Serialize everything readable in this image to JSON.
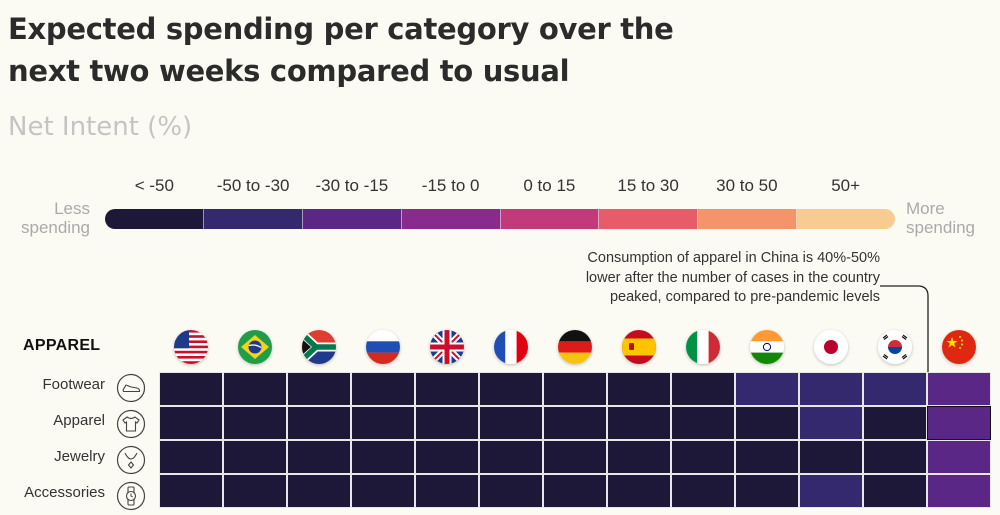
{
  "title_line1": "Expected spending per category over the",
  "title_line2": "next two weeks compared to usual",
  "subtitle": "Net Intent (%)",
  "legend": {
    "less_line1": "Less",
    "less_line2": "spending",
    "more_line1": "More",
    "more_line2": "spending",
    "bins": [
      {
        "label": "< -50",
        "color": "#1e1838"
      },
      {
        "label": "-50 to -30",
        "color": "#34296e"
      },
      {
        "label": "-30 to -15",
        "color": "#5b2787"
      },
      {
        "label": "-15 to 0",
        "color": "#8a2a8c"
      },
      {
        "label": "0 to 15",
        "color": "#c23a7a"
      },
      {
        "label": "15 to 30",
        "color": "#e85c6a"
      },
      {
        "label": "30 to 50",
        "color": "#f4946a"
      },
      {
        "label": "50+",
        "color": "#f8cc90"
      }
    ]
  },
  "annotation": {
    "line1": "Consumption of apparel in China is 40%-50%",
    "line2": "lower after the number of cases in the country",
    "line3": "peaked, compared to pre-pandemic levels"
  },
  "section_title": "APPAREL",
  "chart_data": {
    "type": "heatmap",
    "title": "Expected spending per category over the next two weeks compared to usual",
    "subtitle": "Net Intent (%)",
    "columns": [
      "us-flag-icon",
      "brazil-flag-icon",
      "south-africa-flag-icon",
      "russia-flag-icon",
      "uk-flag-icon",
      "france-flag-icon",
      "germany-flag-icon",
      "spain-flag-icon",
      "italy-flag-icon",
      "india-flag-icon",
      "japan-flag-icon",
      "south-korea-flag-icon",
      "china-flag-icon"
    ],
    "rows": [
      "Footwear",
      "Apparel",
      "Jewelry",
      "Accessories"
    ],
    "row_icons": [
      "shoe-icon",
      "shirt-icon",
      "necklace-icon",
      "watch-icon"
    ],
    "value_bins": [
      [
        0,
        0,
        0,
        0,
        0,
        0,
        0,
        0,
        0,
        1,
        1,
        1,
        2
      ],
      [
        0,
        0,
        0,
        0,
        0,
        0,
        0,
        0,
        0,
        0,
        1,
        0,
        2
      ],
      [
        0,
        0,
        0,
        0,
        0,
        0,
        0,
        0,
        0,
        0,
        0,
        0,
        2
      ],
      [
        0,
        0,
        0,
        0,
        0,
        0,
        0,
        0,
        0,
        0,
        1,
        0,
        2
      ]
    ],
    "bin_labels": [
      "< -50",
      "-50 to -30",
      "-30 to -15",
      "-15 to 0",
      "0 to 15",
      "15 to 30",
      "30 to 50",
      "50+"
    ],
    "highlighted": {
      "row": "Apparel",
      "column": "china-flag-icon"
    }
  }
}
